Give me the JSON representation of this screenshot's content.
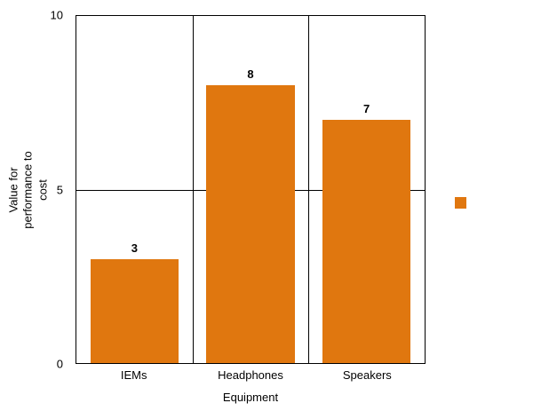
{
  "chart_data": {
    "type": "bar",
    "title": "",
    "categories": [
      "IEMs",
      "Headphones",
      "Speakers"
    ],
    "values": [
      3,
      8,
      7
    ],
    "xlabel": "Equipment",
    "ylabel": "Value for performance to cost",
    "ylim": [
      0,
      10
    ],
    "yticks": [
      0,
      5,
      10
    ],
    "grid": true,
    "bar_color": "#e0770f",
    "legend": {
      "position": "right",
      "label": "",
      "swatch_color": "#e0770f"
    }
  }
}
